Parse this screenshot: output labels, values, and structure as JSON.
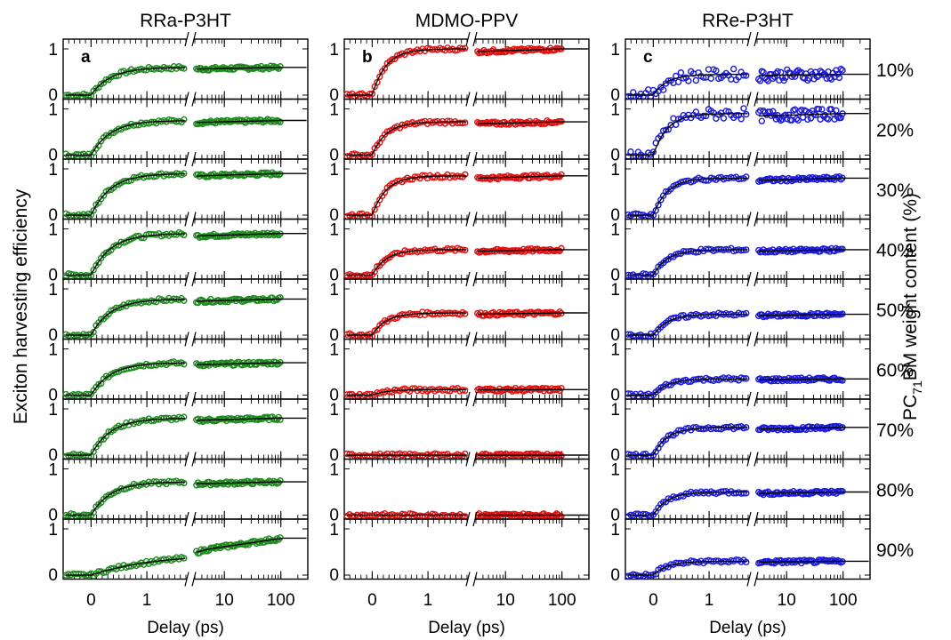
{
  "figure": {
    "ylabel": "Exciton harvesting efficiency",
    "right_label": {
      "prefix": "PC",
      "subscript": "71",
      "suffix": "BM weight content (%)"
    },
    "content_levels": [
      "10%",
      "20%",
      "30%",
      "40%",
      "50%",
      "60%",
      "70%",
      "80%",
      "90%"
    ],
    "fit_color": "#000000"
  },
  "chart_data": [
    {
      "type": "scatter",
      "title": "RRa-P3HT",
      "panel_letter": "a",
      "xlabel": "Delay (ps)",
      "ylabel": "Exciton harvesting efficiency",
      "x_scale": "linear below ~3 ps, broken axis, logarithmic above",
      "x_tick_labels": [
        "0",
        "1",
        "10",
        "100"
      ],
      "y_tick_labels": [
        "0",
        "1"
      ],
      "ylim": [
        0,
        1.2
      ],
      "color": "#1e8a1e",
      "series": [
        {
          "name": "10%",
          "plateau": 0.6
        },
        {
          "name": "20%",
          "plateau": 0.75
        },
        {
          "name": "30%",
          "plateau": 0.9
        },
        {
          "name": "40%",
          "plateau": 0.9
        },
        {
          "name": "50%",
          "plateau": 0.78
        },
        {
          "name": "60%",
          "plateau": 0.7
        },
        {
          "name": "70%",
          "plateau": 0.8
        },
        {
          "name": "80%",
          "plateau": 0.72
        },
        {
          "name": "90%",
          "plateau": 0.8
        }
      ]
    },
    {
      "type": "scatter",
      "title": "MDMO-PPV",
      "panel_letter": "b",
      "xlabel": "Delay (ps)",
      "x_tick_labels": [
        "0",
        "1",
        "10",
        "100"
      ],
      "y_tick_labels": [
        "0",
        "1"
      ],
      "ylim": [
        0,
        1.2
      ],
      "color": "#e01010",
      "series": [
        {
          "name": "10%",
          "plateau": 1.0
        },
        {
          "name": "20%",
          "plateau": 0.72
        },
        {
          "name": "30%",
          "plateau": 0.85
        },
        {
          "name": "40%",
          "plateau": 0.55
        },
        {
          "name": "50%",
          "plateau": 0.48
        },
        {
          "name": "60%",
          "plateau": 0.12
        },
        {
          "name": "70%",
          "plateau": 0.0
        },
        {
          "name": "80%",
          "plateau": 0.0
        },
        {
          "name": "90%",
          "plateau": null
        }
      ]
    },
    {
      "type": "scatter",
      "title": "RRe-P3HT",
      "panel_letter": "c",
      "xlabel": "Delay (ps)",
      "x_tick_labels": [
        "0",
        "1",
        "10",
        "100"
      ],
      "y_tick_labels": [
        "0",
        "1"
      ],
      "ylim": [
        0,
        1.2
      ],
      "color": "#1a1ad8",
      "series": [
        {
          "name": "10%",
          "plateau": 0.45
        },
        {
          "name": "20%",
          "plateau": 0.9
        },
        {
          "name": "30%",
          "plateau": 0.8
        },
        {
          "name": "40%",
          "plateau": 0.55
        },
        {
          "name": "50%",
          "plateau": 0.45
        },
        {
          "name": "60%",
          "plateau": 0.35
        },
        {
          "name": "70%",
          "plateau": 0.6
        },
        {
          "name": "80%",
          "plateau": 0.5
        },
        {
          "name": "90%",
          "plateau": 0.3
        }
      ]
    }
  ]
}
